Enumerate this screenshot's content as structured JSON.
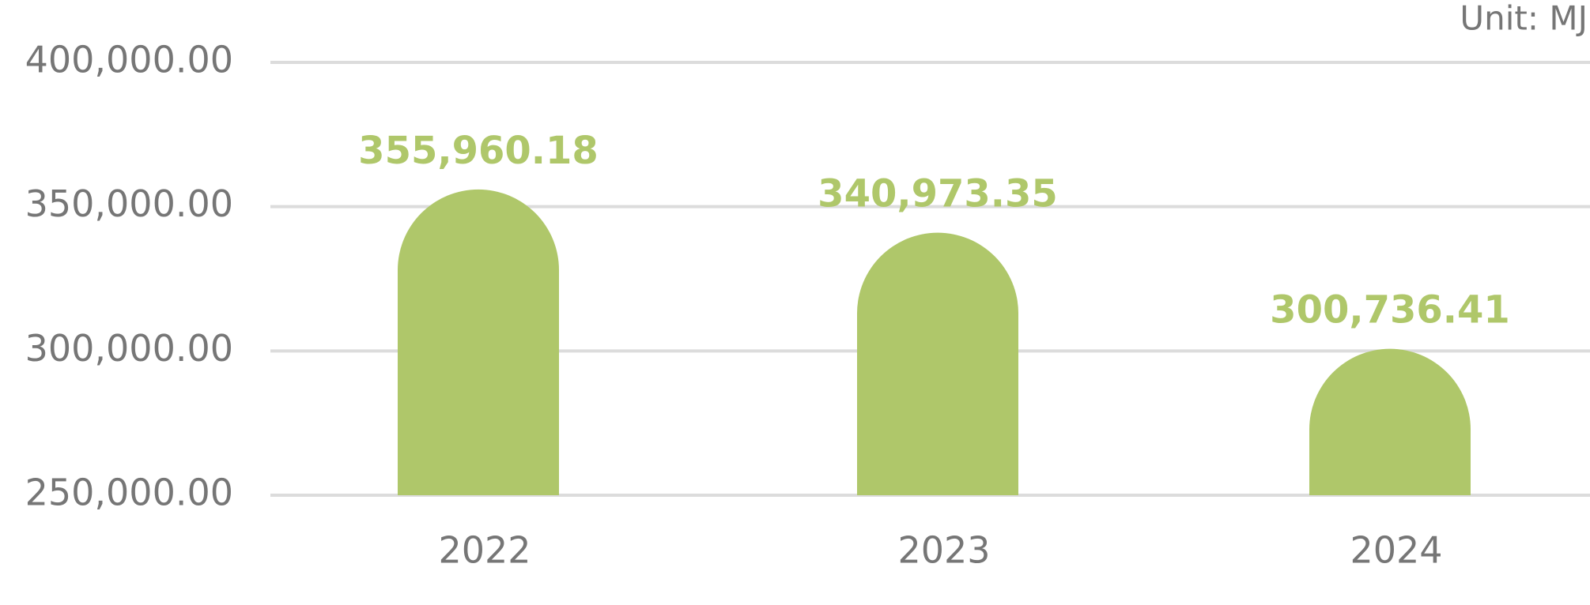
{
  "chart_data": {
    "type": "bar",
    "unit_label": "Unit: MJ",
    "categories": [
      "2022",
      "2023",
      "2024"
    ],
    "values": [
      355960.18,
      340973.35,
      300736.41
    ],
    "value_labels": [
      "355,960.18",
      "340,973.35",
      "300,736.41"
    ],
    "color": "#afc76a",
    "ylim": [
      250000,
      400000
    ],
    "yticks": [
      {
        "value": 250000,
        "label": "250,000.00"
      },
      {
        "value": 300000,
        "label": "300,000.00"
      },
      {
        "value": 350000,
        "label": "350,000.00"
      },
      {
        "value": 400000,
        "label": "400,000.00"
      }
    ],
    "grid": true
  }
}
